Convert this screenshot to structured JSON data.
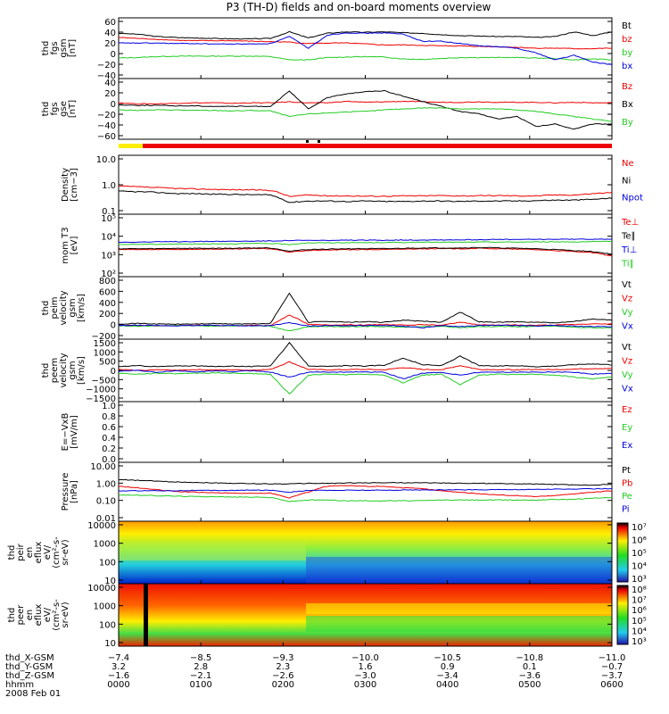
{
  "title": "P3 (TH-D) fields and on-board moments overview",
  "colors": {
    "black": "#000000",
    "red": "#ee0000",
    "green": "#22cc22",
    "blue": "#0000dd",
    "yellow": "#ffee00"
  },
  "chart_data": [
    {
      "id": "fgs-gsm",
      "type": "line",
      "ylabel": [
        "thd",
        "fgs",
        "gsm",
        "[nT]"
      ],
      "yticks": [
        "60",
        "40",
        "20",
        "0",
        "−20",
        "−40"
      ],
      "ylim": [
        -60,
        70
      ],
      "legend": [
        "Bt",
        "bz",
        "by",
        "bx"
      ],
      "legend_colors": [
        "black",
        "red",
        "green",
        "blue"
      ],
      "series": [
        {
          "name": "Bt",
          "color": "black",
          "values": [
            37,
            35,
            30,
            28,
            27,
            26,
            25,
            25,
            26,
            40,
            27,
            37,
            40,
            39,
            40,
            38,
            37,
            34,
            32,
            31,
            30,
            30,
            28,
            30,
            40,
            32,
            40
          ]
        },
        {
          "name": "bz",
          "color": "red",
          "values": [
            28,
            26,
            24,
            22,
            21,
            21,
            21,
            20,
            19,
            18,
            15,
            16,
            16,
            14,
            12,
            12,
            11,
            10,
            10,
            9,
            8,
            7,
            5,
            5,
            4,
            4,
            5
          ]
        },
        {
          "name": "by",
          "color": "green",
          "values": [
            -16,
            -15,
            -13,
            -12,
            -12,
            -12,
            -12,
            -12,
            -13,
            -20,
            -20,
            -15,
            -14,
            -13,
            -14,
            -18,
            -19,
            -17,
            -15,
            -15,
            -15,
            -15,
            -16,
            -17,
            -20,
            -18,
            -20
          ]
        },
        {
          "name": "bx",
          "color": "blue",
          "values": [
            16,
            16,
            16,
            15,
            15,
            14,
            14,
            14,
            15,
            30,
            5,
            33,
            38,
            37,
            38,
            35,
            20,
            20,
            15,
            10,
            8,
            5,
            -5,
            -20,
            -10,
            -25,
            -30
          ]
        }
      ]
    },
    {
      "id": "fgs-gse",
      "type": "line",
      "ylabel": [
        "thd",
        "fgs",
        "gse",
        "[nT]"
      ],
      "yticks": [
        "40",
        "20",
        "0",
        "−20",
        "−40",
        "−60"
      ],
      "ylim": [
        -70,
        50
      ],
      "legend": [
        "Bz",
        "Bx",
        "By"
      ],
      "legend_colors": [
        "red",
        "black",
        "green"
      ],
      "series": [
        {
          "name": "Bz",
          "color": "red",
          "values": [
            2,
            0,
            0,
            1,
            2,
            2,
            1,
            2,
            2,
            4,
            2,
            2,
            5,
            3,
            4,
            5,
            4,
            3,
            3,
            4,
            3,
            3,
            3,
            2,
            3,
            2,
            2
          ]
        },
        {
          "name": "Bx",
          "color": "black",
          "values": [
            -2,
            -3,
            -3,
            -4,
            -4,
            -5,
            -5,
            -5,
            -5,
            25,
            -10,
            12,
            20,
            24,
            26,
            15,
            5,
            -5,
            -15,
            -20,
            -30,
            -25,
            -45,
            -40,
            -50,
            -40,
            -40
          ]
        },
        {
          "name": "By",
          "color": "green",
          "values": [
            -12,
            -13,
            -12,
            -12,
            -13,
            -13,
            -14,
            -13,
            -14,
            -25,
            -20,
            -18,
            -16,
            -15,
            -12,
            -10,
            -8,
            -8,
            -10,
            -10,
            -10,
            -12,
            -15,
            -20,
            -25,
            -30,
            -35
          ]
        }
      ]
    },
    {
      "id": "density",
      "type": "line",
      "log": true,
      "ylabel": [
        "Density",
        "[cm−3]"
      ],
      "yticks": [
        "10.0",
        "1.0",
        "0.1"
      ],
      "ylim": [
        0.1,
        10
      ],
      "legend": [
        "Ne",
        "Ni",
        "Npot"
      ],
      "legend_colors": [
        "red",
        "black",
        "blue"
      ],
      "series": [
        {
          "name": "Ne",
          "color": "red",
          "values": [
            0.9,
            0.85,
            0.8,
            0.75,
            0.72,
            0.7,
            0.68,
            0.67,
            0.65,
            0.4,
            0.45,
            0.42,
            0.42,
            0.41,
            0.41,
            0.42,
            0.42,
            0.43,
            0.42,
            0.42,
            0.43,
            0.42,
            0.42,
            0.45,
            0.45,
            0.5,
            0.55
          ]
        },
        {
          "name": "Ni",
          "color": "black",
          "values": [
            0.6,
            0.58,
            0.55,
            0.5,
            0.5,
            0.48,
            0.47,
            0.46,
            0.45,
            0.25,
            0.28,
            0.28,
            0.27,
            0.28,
            0.27,
            0.27,
            0.28,
            0.28,
            0.27,
            0.28,
            0.28,
            0.28,
            0.29,
            0.3,
            0.3,
            0.32,
            0.35
          ]
        }
      ]
    },
    {
      "id": "temperature",
      "type": "line",
      "log": true,
      "ylabel": [
        "mom T3",
        "[eV]"
      ],
      "yticks": [
        "10⁵",
        "10⁴",
        "10³",
        "10²"
      ],
      "ylim": [
        100,
        100000
      ],
      "legend": [
        "Te⊥",
        "Te∥",
        "Ti⊥",
        "Ti∥"
      ],
      "legend_colors": [
        "red",
        "black",
        "blue",
        "green"
      ],
      "series": [
        {
          "name": "Te⊥",
          "color": "red",
          "values": [
            2000,
            2000,
            2000,
            2000,
            2100,
            2100,
            2100,
            2200,
            2200,
            1500,
            1800,
            1900,
            2000,
            2000,
            2000,
            2100,
            2200,
            2200,
            2200,
            2300,
            2200,
            2100,
            2000,
            1800,
            1600,
            1400,
            1000
          ]
        },
        {
          "name": "Te∥",
          "color": "black",
          "values": [
            2200,
            2200,
            2200,
            2300,
            2300,
            2300,
            2300,
            2400,
            2400,
            1700,
            2000,
            2100,
            2200,
            2200,
            2200,
            2300,
            2400,
            2400,
            2400,
            2500,
            2400,
            2300,
            2200,
            2000,
            1800,
            1600,
            1200
          ]
        },
        {
          "name": "Ti⊥",
          "color": "blue",
          "values": [
            4500,
            4600,
            4700,
            4800,
            4900,
            5000,
            5000,
            5100,
            5200,
            5500,
            5500,
            5500,
            5600,
            5600,
            5700,
            5800,
            5800,
            5900,
            5900,
            6000,
            6100,
            6100,
            6200,
            6300,
            6300,
            6400,
            6500
          ]
        },
        {
          "name": "Ti∥",
          "color": "green",
          "values": [
            3500,
            3600,
            3600,
            3700,
            3700,
            3800,
            3800,
            3900,
            3900,
            3500,
            4200,
            4200,
            4300,
            4300,
            4400,
            4400,
            4500,
            4500,
            4500,
            4600,
            4600,
            4600,
            4700,
            4700,
            4700,
            4800,
            4800
          ]
        }
      ]
    },
    {
      "id": "peim-velocity",
      "type": "line",
      "ylabel": [
        "thd",
        "peim",
        "velocity",
        "gsm",
        "[km/s]"
      ],
      "yticks": [
        "800",
        "600",
        "400",
        "200",
        "0",
        "−200"
      ],
      "ylim": [
        -250,
        900
      ],
      "legend": [
        "Vt",
        "Vz",
        "Vy",
        "Vx"
      ],
      "legend_colors": [
        "black",
        "red",
        "green",
        "blue"
      ],
      "series": [
        {
          "name": "Vt",
          "color": "black",
          "values": [
            30,
            40,
            30,
            25,
            30,
            35,
            30,
            30,
            40,
            600,
            60,
            80,
            60,
            70,
            60,
            100,
            80,
            60,
            250,
            70,
            60,
            70,
            60,
            50,
            80,
            120,
            100
          ]
        },
        {
          "name": "Vz",
          "color": "red",
          "values": [
            5,
            0,
            -5,
            0,
            5,
            0,
            -5,
            5,
            0,
            200,
            20,
            10,
            15,
            10,
            20,
            10,
            15,
            10,
            60,
            15,
            10,
            10,
            5,
            10,
            20,
            30,
            30
          ]
        },
        {
          "name": "Vy",
          "color": "green",
          "values": [
            -5,
            -10,
            -5,
            0,
            -5,
            -10,
            -5,
            0,
            -10,
            -100,
            -20,
            -15,
            -20,
            -15,
            -20,
            -30,
            -20,
            -15,
            -40,
            -20,
            -15,
            -20,
            -15,
            -10,
            -30,
            -40,
            -40
          ]
        },
        {
          "name": "Vx",
          "color": "blue",
          "values": [
            0,
            5,
            0,
            -5,
            0,
            5,
            0,
            -5,
            0,
            50,
            -10,
            0,
            -5,
            0,
            5,
            -10,
            -40,
            0,
            -20,
            0,
            5,
            0,
            -5,
            0,
            -10,
            -20,
            -20
          ]
        }
      ]
    },
    {
      "id": "peem-velocity",
      "type": "line",
      "ylabel": [
        "thd",
        "peem",
        "velocity",
        "gsm",
        "[km/s]"
      ],
      "yticks": [
        "1500",
        "1000",
        "500",
        "0",
        "−500",
        "−1000",
        "−1500"
      ],
      "ylim": [
        -1600,
        1700
      ],
      "legend": [
        "Vt",
        "Vz",
        "Vy",
        "Vx"
      ],
      "legend_colors": [
        "black",
        "red",
        "green",
        "blue"
      ],
      "series": [
        {
          "name": "Vt",
          "color": "black",
          "values": [
            250,
            300,
            250,
            280,
            300,
            250,
            280,
            250,
            300,
            1500,
            300,
            250,
            300,
            280,
            320,
            700,
            350,
            300,
            800,
            300,
            280,
            300,
            250,
            280,
            350,
            400,
            350
          ]
        },
        {
          "name": "Vz",
          "color": "red",
          "values": [
            100,
            50,
            80,
            60,
            90,
            70,
            80,
            60,
            100,
            500,
            100,
            80,
            90,
            100,
            80,
            200,
            100,
            90,
            300,
            100,
            90,
            80,
            100,
            90,
            120,
            150,
            150
          ]
        },
        {
          "name": "Vy",
          "color": "green",
          "values": [
            -100,
            -150,
            -100,
            -120,
            -100,
            -80,
            -100,
            -120,
            -150,
            -1200,
            -200,
            -150,
            -180,
            -150,
            -200,
            -600,
            -200,
            -150,
            -700,
            -200,
            -150,
            -180,
            -150,
            -200,
            -300,
            -400,
            -300
          ]
        },
        {
          "name": "Vx",
          "color": "blue",
          "values": [
            0,
            50,
            -50,
            30,
            -30,
            20,
            -20,
            40,
            -40,
            -300,
            -50,
            -30,
            -40,
            -30,
            -50,
            -400,
            -100,
            -50,
            -200,
            -50,
            -40,
            -50,
            -40,
            -30,
            -50,
            -150,
            -100
          ]
        }
      ]
    },
    {
      "id": "exb",
      "type": "line",
      "ylabel": [
        "E=−VxB",
        "[mV/m]"
      ],
      "yticks": [
        "1.0",
        "0.8",
        "0.6",
        "0.4",
        "0.2",
        "0.0"
      ],
      "ylim": [
        0,
        1
      ],
      "legend": [
        "Ez",
        "Ey",
        "Ex"
      ],
      "legend_colors": [
        "red",
        "green",
        "blue"
      ],
      "series": []
    },
    {
      "id": "pressure",
      "type": "line",
      "log": true,
      "ylabel": [
        "Pressure",
        "[nPa]"
      ],
      "yticks": [
        "10.00",
        "1.00",
        "0.10",
        "0.01"
      ],
      "ylim": [
        0.01,
        10
      ],
      "legend": [
        "Pt",
        "Pb",
        "Pe",
        "Pi"
      ],
      "legend_colors": [
        "black",
        "red",
        "green",
        "blue"
      ],
      "series": [
        {
          "name": "Pt",
          "color": "black",
          "values": [
            1.3,
            1.2,
            1.1,
            1.0,
            0.95,
            0.9,
            0.85,
            0.82,
            0.8,
            0.8,
            0.85,
            0.85,
            0.88,
            0.9,
            0.92,
            0.92,
            0.9,
            0.88,
            0.85,
            0.85,
            0.82,
            0.8,
            0.78,
            0.75,
            0.7,
            0.7,
            0.75
          ]
        },
        {
          "name": "Pb",
          "color": "red",
          "values": [
            0.6,
            0.5,
            0.4,
            0.33,
            0.3,
            0.28,
            0.27,
            0.26,
            0.27,
            0.15,
            0.3,
            0.6,
            0.65,
            0.6,
            0.6,
            0.5,
            0.45,
            0.35,
            0.3,
            0.25,
            0.22,
            0.2,
            0.18,
            0.2,
            0.25,
            0.3,
            0.35
          ]
        },
        {
          "name": "Pe",
          "color": "green",
          "values": [
            0.22,
            0.21,
            0.2,
            0.19,
            0.18,
            0.18,
            0.17,
            0.17,
            0.16,
            0.1,
            0.12,
            0.12,
            0.11,
            0.11,
            0.11,
            0.11,
            0.11,
            0.12,
            0.12,
            0.12,
            0.12,
            0.12,
            0.12,
            0.13,
            0.13,
            0.15,
            0.16
          ]
        },
        {
          "name": "Pi",
          "color": "blue",
          "values": [
            0.35,
            0.36,
            0.36,
            0.36,
            0.37,
            0.37,
            0.37,
            0.38,
            0.38,
            0.3,
            0.37,
            0.37,
            0.38,
            0.38,
            0.38,
            0.39,
            0.39,
            0.4,
            0.4,
            0.4,
            0.41,
            0.41,
            0.42,
            0.43,
            0.43,
            0.45,
            0.46
          ]
        }
      ]
    },
    {
      "id": "peir-spectrogram",
      "type": "heatmap",
      "ylabel": [
        "thd",
        "peir",
        "en",
        "eflux",
        "eV/",
        "(cm²-s-",
        "sr-eV)"
      ],
      "yticks": [
        "10000",
        "1000",
        "100",
        "10"
      ],
      "colorbar_ticks": [
        "10⁷",
        "10⁶",
        "10⁵",
        "10⁴",
        "10³"
      ]
    },
    {
      "id": "peer-spectrogram",
      "type": "heatmap",
      "ylabel": [
        "thd",
        "peer",
        "en",
        "eflux",
        "eV/",
        "(cm²-s-",
        "sr-eV)"
      ],
      "yticks": [
        "10000",
        "1000",
        "100",
        "10"
      ],
      "colorbar_ticks": [
        "10⁸",
        "10⁷",
        "10⁶",
        "10⁵",
        "10⁴",
        "10³"
      ]
    }
  ],
  "x_axis": {
    "rows": [
      {
        "label": "thd_X-GSM",
        "values": [
          "−7.4",
          "−8.5",
          "−9.3",
          "−10.0",
          "−10.5",
          "−10.8",
          "−11.0"
        ]
      },
      {
        "label": "thd_Y-GSM",
        "values": [
          "3.2",
          "2.8",
          "2.3",
          "1.6",
          "0.9",
          "0.1",
          "−0.7"
        ]
      },
      {
        "label": "thd_Z-GSM",
        "values": [
          "−1.6",
          "−2.1",
          "−2.6",
          "−3.0",
          "−3.4",
          "−3.6",
          "−3.7"
        ]
      },
      {
        "label": "hhmm",
        "values": [
          "0000",
          "0100",
          "0200",
          "0300",
          "0400",
          "0500",
          "0600"
        ]
      }
    ],
    "date": "2008 Feb 01"
  }
}
